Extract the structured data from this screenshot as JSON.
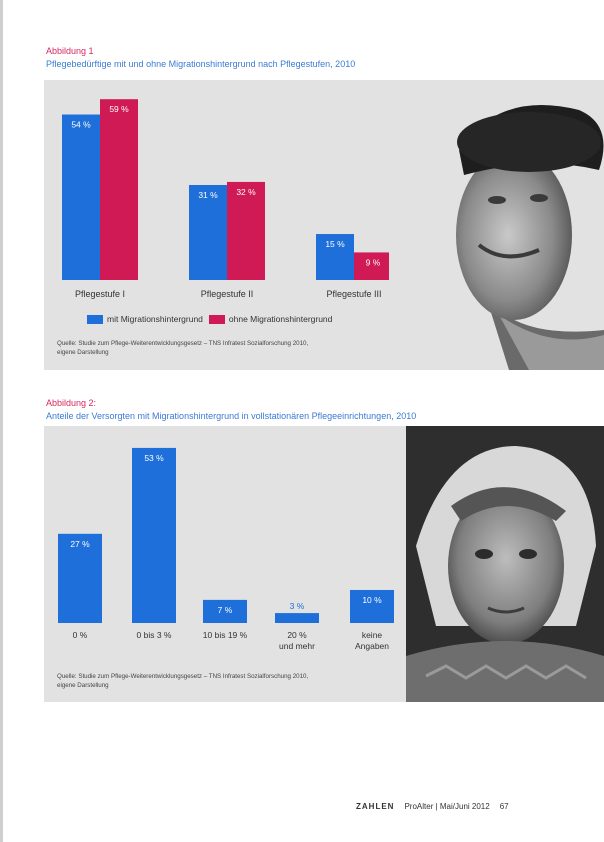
{
  "figure1": {
    "label": "Abbildung 1",
    "title": "Pflegebedürftige mit und ohne Migrationshintergrund nach Pflegestufen, 2010",
    "source_lines": [
      "Quelle: Studie zum Pflege-Weiterentwicklungsgesetz – TNS Infratest Sozialforschung 2010,",
      "eigene Darstellung"
    ],
    "legend_position": "bottom",
    "colors": {
      "mit": "#1e6fd9",
      "ohne": "#d01a55"
    }
  },
  "figure2": {
    "label": "Abbildung 2:",
    "title": "Anteile der Versorgten mit Migrationshintergrund in vollstationären Pflegeeinrichtungen, 2010",
    "source_lines": [
      "Quelle: Studie zum Pflege-Weiterentwicklungsgesetz – TNS Infratest Sozialforschung 2010,",
      "eigene Darstellung"
    ],
    "colors": {
      "bar": "#1e6fd9"
    }
  },
  "chart_data": [
    {
      "type": "bar",
      "categories": [
        "Pflegestufe I",
        "Pflegestufe II",
        "Pflegestufe III"
      ],
      "series": [
        {
          "name": "mit Migrationshintergrund",
          "values": [
            54,
            31,
            15
          ],
          "labels": [
            "54 %",
            "31 %",
            "15 %"
          ]
        },
        {
          "name": "ohne Migrationshintergrund",
          "values": [
            59,
            32,
            9
          ],
          "labels": [
            "59 %",
            "32 %",
            "9 %"
          ]
        }
      ],
      "title": "Pflegebedürftige mit und ohne Migrationshintergrund nach Pflegestufen, 2010",
      "ylim": [
        0,
        62
      ],
      "grid": false,
      "legend": "bottom"
    },
    {
      "type": "bar",
      "categories": [
        "0 %",
        "0 bis 3 %",
        "10 bis 19 %",
        "20 %",
        "keine"
      ],
      "categories_line2": [
        "",
        "",
        "",
        "und mehr",
        "Angaben"
      ],
      "values": [
        27,
        53,
        7,
        3,
        10
      ],
      "labels": [
        "27 %",
        "53 %",
        "7 %",
        "3 %",
        "10 %"
      ],
      "title": "Anteile der Versorgten mit Migrationshintergrund in vollstationären Pflegeeinrichtungen, 2010",
      "ylim": [
        0,
        56
      ],
      "grid": false
    }
  ],
  "footer": {
    "section": "ZAHLEN",
    "magazine": "ProAlter | Mai/Juni 2012",
    "page": "67"
  }
}
